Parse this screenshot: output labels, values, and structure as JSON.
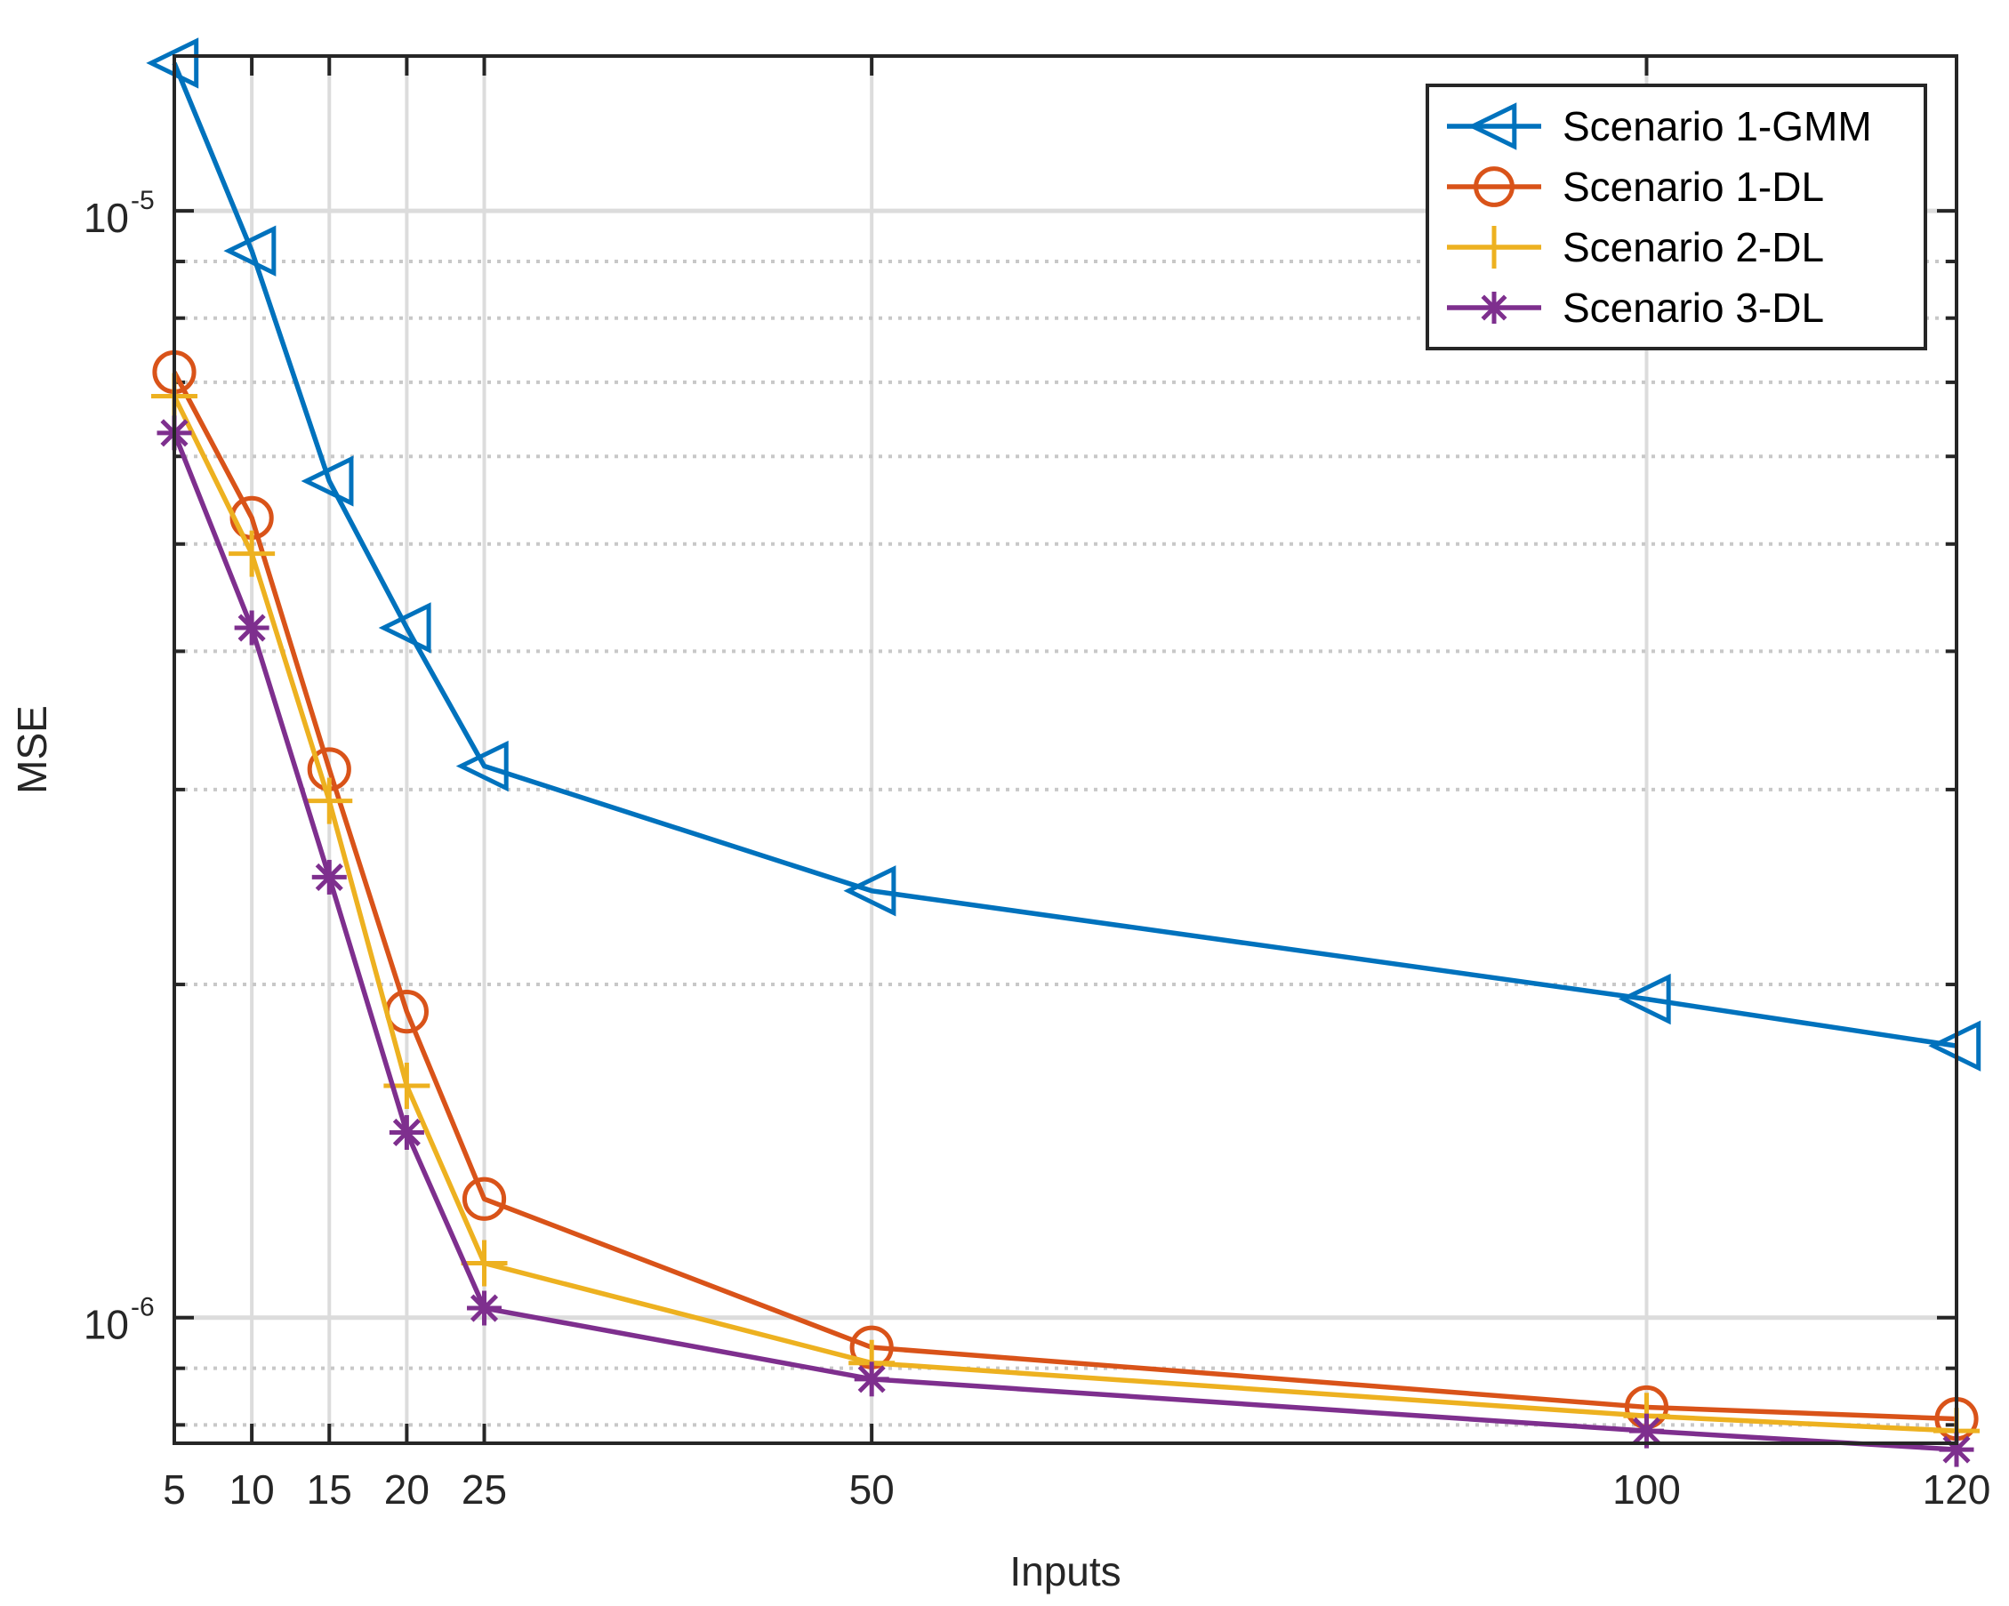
{
  "chart_data": {
    "type": "line",
    "title": "",
    "xlabel": "Inputs",
    "ylabel": "MSE",
    "x": [
      5,
      10,
      15,
      20,
      25,
      50,
      100,
      120
    ],
    "xlim": [
      5,
      120
    ],
    "ylim": [
      7.7e-07,
      1.38e-05
    ],
    "yscale": "log",
    "xtick_labels": [
      "5",
      "10",
      "15",
      "20",
      "25",
      "50",
      "100",
      "120"
    ],
    "ytick_major": [
      {
        "value": 1e-06,
        "base": "10",
        "exponent": "-6"
      },
      {
        "value": 1e-05,
        "base": "10",
        "exponent": "-5"
      }
    ],
    "ytick_minor": [
      8e-07,
      9e-07,
      2e-06,
      3e-06,
      4e-06,
      5e-06,
      6e-06,
      7e-06,
      8e-06,
      9e-06
    ],
    "grid": true,
    "legend_position": "top-right",
    "series": [
      {
        "name": "Scenario 1-GMM",
        "color": "#0072BD",
        "marker": "triangle-left",
        "values": [
          1.36e-05,
          9.2e-06,
          5.7e-06,
          4.2e-06,
          3.15e-06,
          2.43e-06,
          1.94e-06,
          1.76e-06
        ]
      },
      {
        "name": "Scenario 1-DL",
        "color": "#D95319",
        "marker": "circle",
        "values": [
          7.15e-06,
          5.28e-06,
          3.13e-06,
          1.89e-06,
          1.28e-06,
          9.4e-07,
          8.3e-07,
          8.1e-07
        ]
      },
      {
        "name": "Scenario 2-DL",
        "color": "#EDB120",
        "marker": "plus",
        "values": [
          6.8e-06,
          4.9e-06,
          2.93e-06,
          1.62e-06,
          1.12e-06,
          9.1e-07,
          8.15e-07,
          7.9e-07
        ]
      },
      {
        "name": "Scenario 3-DL",
        "color": "#7E2F8E",
        "marker": "asterisk",
        "values": [
          6.3e-06,
          4.2e-06,
          2.5e-06,
          1.47e-06,
          1.02e-06,
          8.8e-07,
          7.9e-07,
          7.6e-07
        ]
      }
    ]
  }
}
